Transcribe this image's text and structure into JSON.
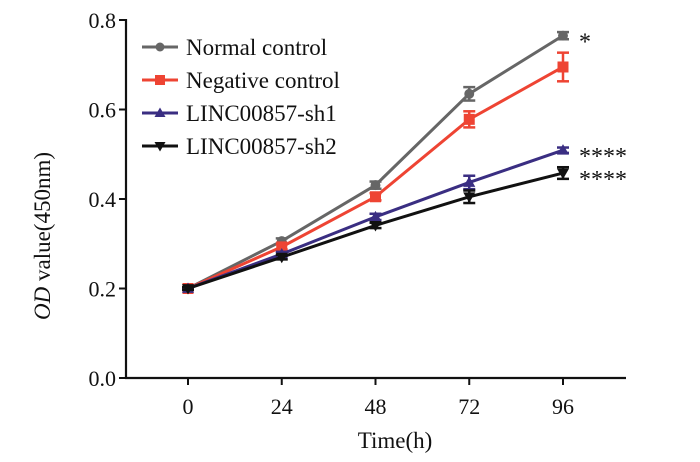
{
  "chart_data": {
    "type": "line",
    "title": "",
    "xlabel": "Time(h)",
    "ylabel_italic": "OD",
    "ylabel_rest": " value(450nm)",
    "ylabel": "OD value(450nm)",
    "x": [
      0,
      24,
      48,
      72,
      96
    ],
    "xticks": [
      "0",
      "24",
      "48",
      "72",
      "96"
    ],
    "yticks": [
      "0.0",
      "0.2",
      "0.4",
      "0.6",
      "0.8"
    ],
    "ylim": [
      0,
      0.8
    ],
    "xlim": [
      -17,
      110
    ],
    "grid": false,
    "legend_position": "top-left",
    "series": [
      {
        "name": "Normal control",
        "color": "#666666",
        "marker": "circle",
        "values": [
          0.2,
          0.306,
          0.431,
          0.635,
          0.765
        ],
        "errors": [
          0.003,
          0.006,
          0.008,
          0.015,
          0.008
        ],
        "significance": "*"
      },
      {
        "name": "Negative control",
        "color": "#ee4433",
        "marker": "square",
        "values": [
          0.2,
          0.293,
          0.405,
          0.578,
          0.695
        ],
        "errors": [
          0.003,
          0.006,
          0.008,
          0.018,
          0.032
        ],
        "significance": ""
      },
      {
        "name": "LINC00857-sh1",
        "color": "#3a2e82",
        "marker": "triangle-up",
        "values": [
          0.2,
          0.277,
          0.36,
          0.437,
          0.509
        ],
        "errors": [
          0.003,
          0.005,
          0.007,
          0.015,
          0.006
        ],
        "significance": "****"
      },
      {
        "name": "LINC00857-sh2",
        "color": "#111111",
        "marker": "triangle-down",
        "values": [
          0.2,
          0.27,
          0.341,
          0.405,
          0.458
        ],
        "errors": [
          0.003,
          0.005,
          0.006,
          0.014,
          0.013
        ],
        "significance": "****"
      }
    ]
  }
}
